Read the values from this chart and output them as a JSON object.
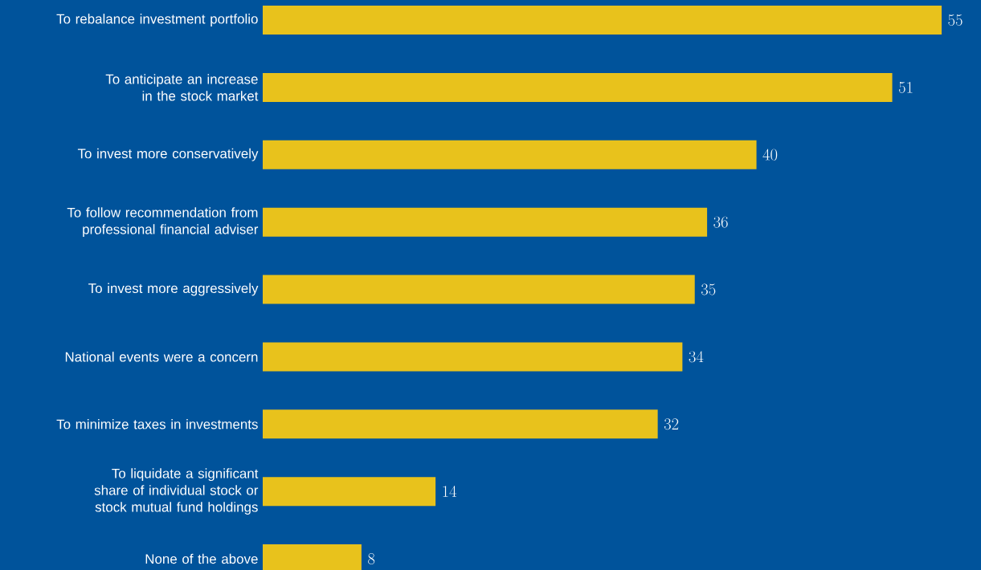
{
  "chart_data": {
    "type": "bar",
    "orientation": "horizontal",
    "color": "#e8c21c",
    "data_labels": true,
    "categories": [
      "To rebalance investment portfolio",
      "To anticipate an increase in the stock market",
      "To invest more conservatively",
      "To follow recommendation from professional financial adviser",
      "To invest more aggressively",
      "National events were a concern",
      "To minimize taxes in investments",
      "To liquidate a significant share of individual stock or stock mutual fund holdings",
      "None of the above"
    ],
    "values": [
      55,
      51,
      40,
      36,
      35,
      34,
      32,
      14,
      8
    ]
  }
}
